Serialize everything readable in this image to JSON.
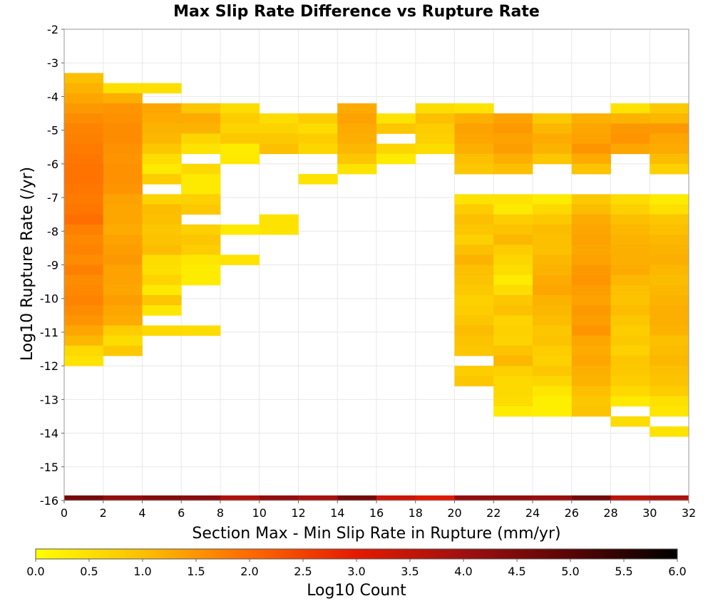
{
  "chart_data": {
    "type": "heatmap",
    "title": "Max Slip Rate Difference vs Rupture Rate",
    "xlabel": "Section Max - Min Slip Rate in Rupture (mm/yr)",
    "ylabel": "Log10 Rupture Rate (/yr)",
    "xlim": [
      0,
      32
    ],
    "ylim": [
      -16,
      -2
    ],
    "x_ticks": [
      0,
      2,
      4,
      6,
      8,
      10,
      12,
      14,
      16,
      18,
      20,
      22,
      24,
      26,
      28,
      30,
      32
    ],
    "y_ticks": [
      -2,
      -3,
      -4,
      -5,
      -6,
      -7,
      -8,
      -9,
      -10,
      -11,
      -12,
      -13,
      -14,
      -15,
      -16
    ],
    "grid": true,
    "bin_width_x": 2,
    "bin_height_y": 0.3,
    "colorbar": {
      "label": "Log10 Count",
      "min": 0,
      "max": 6,
      "ticks": [
        "0.0",
        "0.5",
        "1.0",
        "1.5",
        "2.0",
        "2.5",
        "3.0",
        "3.5",
        "4.0",
        "4.5",
        "5.0",
        "5.5",
        "6.0"
      ],
      "stops": [
        {
          "v": 0,
          "color": "#ffff00"
        },
        {
          "v": 1.0,
          "color": "#fcc000"
        },
        {
          "v": 2.0,
          "color": "#ff6a00"
        },
        {
          "v": 3.0,
          "color": "#e41a00"
        },
        {
          "v": 4.0,
          "color": "#a01010"
        },
        {
          "v": 5.0,
          "color": "#5a0505"
        },
        {
          "v": 6.0,
          "color": "#000000"
        }
      ]
    },
    "columns": [
      {
        "x0": 0,
        "y0": -3.3,
        "total": 4.0,
        "values": [
          1.0,
          1.15,
          1.3,
          1.45,
          1.6,
          1.7,
          1.75,
          1.8,
          1.85,
          1.9,
          1.9,
          1.85,
          1.8,
          1.85,
          1.95,
          1.75,
          1.65,
          1.7,
          1.6,
          1.75,
          1.6,
          1.65,
          1.7,
          1.6,
          1.5,
          1.3,
          1.1,
          0.6,
          0.45
        ]
      },
      {
        "x0": 2,
        "y0": -3.6,
        "total": 3.7,
        "values": [
          0.5,
          1.2,
          1.5,
          1.55,
          1.6,
          1.6,
          1.55,
          1.5,
          1.55,
          1.55,
          1.5,
          1.35,
          1.3,
          1.3,
          1.25,
          1.35,
          1.4,
          1.45,
          1.35,
          1.35,
          1.3,
          1.4,
          1.3,
          1.25,
          0.8,
          0.55,
          0.85
        ]
      },
      {
        "x0": 4,
        "y0": -3.6,
        "total": 3.2,
        "values": [
          0.5,
          null,
          1.3,
          1.25,
          1.15,
          1.1,
          0.9,
          0.55,
          0.35,
          0.8,
          null,
          0.7,
          1.05,
          1.0,
          0.9,
          0.95,
          1.05,
          0.55,
          0.5,
          0.7,
          0.35,
          0.9,
          0.4,
          null,
          0.6
        ]
      },
      {
        "x0": 6,
        "y0": -4.2,
        "total": 3.0,
        "values": [
          0.9,
          1.25,
          1.15,
          0.65,
          0.45,
          null,
          0.6,
          0.35,
          0.35,
          0.75,
          0.85,
          null,
          0.75,
          0.9,
          0.8,
          0.4,
          0.3,
          0.3,
          null,
          null,
          null,
          null,
          0.55
        ]
      },
      {
        "x0": 8,
        "y0": -4.2,
        "total": 2.7,
        "values": [
          0.55,
          0.8,
          0.7,
          0.85,
          0.3,
          0.35,
          null,
          null,
          null,
          null,
          null,
          null,
          0.35,
          null,
          null,
          0.45
        ]
      },
      {
        "x0": 10,
        "y0": -4.5,
        "total": 2.6,
        "values": [
          0.55,
          0.7,
          0.85,
          1.0,
          null,
          null,
          null,
          null,
          null,
          null,
          0.45,
          0.45
        ]
      },
      {
        "x0": 12,
        "y0": -4.5,
        "total": 2.9,
        "values": [
          0.8,
          0.55,
          0.8,
          0.65,
          null,
          null,
          0.45
        ]
      },
      {
        "x0": 14,
        "y0": -4.2,
        "total": 3.5,
        "values": [
          1.25,
          1.35,
          1.25,
          1.2,
          1.1,
          0.9,
          0.45
        ]
      },
      {
        "x0": 16,
        "y0": -4.5,
        "total": 2.9,
        "values": [
          0.45,
          0.9,
          null,
          0.65,
          0.3
        ]
      },
      {
        "x0": 18,
        "y0": -4.2,
        "total": 3.1,
        "values": [
          0.55,
          1.0,
          0.8,
          0.75,
          0.55
        ]
      },
      {
        "x0": 20,
        "y0": -4.2,
        "total": 3.1,
        "values": [
          0.45,
          1.2,
          1.35,
          1.3,
          1.2,
          1.0,
          0.9
        ]
      },
      {
        "x0": 22,
        "y0": -4.5,
        "total": 3.3,
        "values": [
          1.35,
          1.45,
          1.35,
          1.4,
          1.2,
          1.0
        ]
      },
      {
        "x0": 24,
        "y0": -4.5,
        "total": 3.1,
        "values": [
          0.85,
          1.1,
          1.25,
          1.15,
          0.9
        ]
      },
      {
        "x0": 26,
        "y0": -4.5,
        "total": 3.7,
        "values": [
          1.2,
          1.3,
          1.35,
          1.5,
          1.25,
          0.95
        ]
      },
      {
        "x0": 28,
        "y0": -4.2,
        "total": 3.7,
        "values": [
          0.45,
          1.15,
          1.45,
          1.5,
          1.3
        ]
      },
      {
        "x0": 30,
        "y0": -4.2,
        "total": 3.1,
        "values": [
          0.85,
          1.1,
          1.45,
          1.3,
          1.25,
          1.05,
          0.75
        ]
      }
    ],
    "lower_block": {
      "x0": 20,
      "y0": -6.9,
      "values": [
        [
          0.45,
          0.8,
          1.0,
          0.9,
          0.75,
          1.0,
          1.15,
          1.0,
          0.95,
          0.85,
          0.75,
          0.8,
          0.9,
          1.05,
          0.95,
          0.9,
          null,
          0.8,
          0.9,
          null,
          null,
          null,
          null,
          null
        ],
        [
          0.45,
          0.35,
          0.8,
          0.95,
          1.1,
          0.8,
          0.65,
          0.55,
          0.3,
          0.55,
          0.9,
          1.0,
          0.7,
          0.75,
          0.7,
          0.95,
          1.1,
          0.75,
          0.6,
          0.6,
          0.55,
          0.3,
          null,
          null
        ],
        [
          0.3,
          0.6,
          0.85,
          1.05,
          1.0,
          1.0,
          1.1,
          1.15,
          1.25,
          1.3,
          1.15,
          1.1,
          1.05,
          0.9,
          0.95,
          0.8,
          0.75,
          0.9,
          0.65,
          0.4,
          0.25,
          0.25,
          null,
          null
        ],
        [
          0.85,
          1.05,
          1.25,
          1.3,
          1.35,
          1.3,
          1.35,
          1.45,
          1.5,
          1.4,
          1.35,
          1.45,
          1.4,
          1.5,
          1.3,
          1.25,
          1.3,
          1.2,
          1.15,
          1.0,
          0.9,
          0.95,
          null,
          null
        ],
        [
          0.55,
          0.75,
          1.0,
          1.1,
          1.15,
          1.2,
          1.2,
          1.25,
          1.1,
          1.0,
          0.95,
          1.05,
          0.9,
          0.8,
          0.85,
          0.75,
          0.9,
          0.85,
          0.8,
          0.6,
          0.35,
          null,
          0.55,
          null
        ],
        [
          0.3,
          0.5,
          0.9,
          1.0,
          1.1,
          1.15,
          1.2,
          1.1,
          1.05,
          1.1,
          1.15,
          1.2,
          1.2,
          1.15,
          1.0,
          1.05,
          1.1,
          1.0,
          0.95,
          0.8,
          0.5,
          0.4,
          null,
          0.45
        ]
      ]
    },
    "bottom_strip": {
      "y0": -16,
      "y1": -15.85,
      "values": [
        4.6,
        4.2,
        4.4,
        4.3,
        3.8,
        4.2,
        3.9,
        4.6,
        3.4,
        3.1,
        4.2,
        4.2,
        4.1,
        4.6,
        3.6,
        3.8
      ]
    }
  }
}
